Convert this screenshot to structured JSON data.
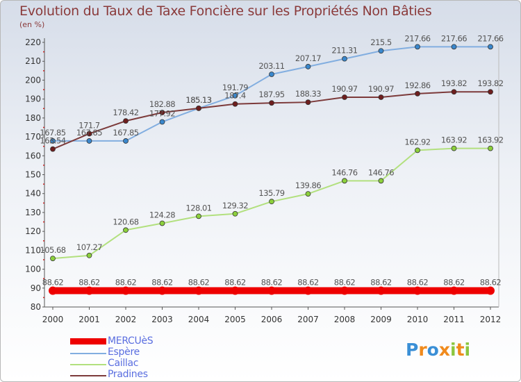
{
  "header": {
    "title": "Evolution du Taux de Taxe Foncière sur les Propriétés Non Bâties",
    "unit": "(en %)"
  },
  "logo": {
    "text": "Proxiti",
    "letter_colors": [
      "#3a8fd6",
      "#f08a1c",
      "#3a8fd6",
      "#f08a1c",
      "#8cc63f",
      "#f08a1c",
      "#8cc63f"
    ]
  },
  "chart_data": {
    "type": "line",
    "title": "Evolution du Taux de Taxe Foncière sur les Propriétés Non Bâties",
    "ylabel": "(en %)",
    "xlabel": "",
    "x": [
      "2000",
      "2001",
      "2002",
      "2003",
      "2004",
      "2005",
      "2006",
      "2007",
      "2008",
      "2009",
      "2010",
      "2011",
      "2012"
    ],
    "yticks": [
      80,
      90,
      100,
      110,
      120,
      130,
      140,
      150,
      160,
      170,
      180,
      190,
      200,
      210,
      220
    ],
    "ylim": [
      80,
      220
    ],
    "grid": false,
    "legend_position": "bottom-left",
    "series": [
      {
        "name": "MERCUèS",
        "color": "#ee0000",
        "marker_fill": "#ee0000",
        "style": "thick",
        "values": [
          88.62,
          88.62,
          88.62,
          88.62,
          88.62,
          88.62,
          88.62,
          88.62,
          88.62,
          88.62,
          88.62,
          88.62,
          88.62
        ],
        "labels": [
          "88.62",
          "88.62",
          "88.62",
          "88.62",
          "88.62",
          "88.62",
          "88.62",
          "88.62",
          "88.62",
          "88.62",
          "88.62",
          "88.62",
          "88.62"
        ]
      },
      {
        "name": "Espère",
        "color": "#82aee0",
        "marker_fill": "#3a87cc",
        "style": "thin",
        "values": [
          167.85,
          167.85,
          167.85,
          177.92,
          185.13,
          191.79,
          203.11,
          207.17,
          211.31,
          215.5,
          217.66,
          217.66,
          217.66
        ],
        "labels": [
          "167.85",
          "167.85",
          "167.85",
          "177.92",
          "185.13",
          "191.79",
          "203.11",
          "207.17",
          "211.31",
          "215.5",
          "217.66",
          "217.66",
          "217.66"
        ]
      },
      {
        "name": "Caillac",
        "color": "#b2e07e",
        "marker_fill": "#8cd03c",
        "style": "thin",
        "values": [
          105.68,
          107.27,
          120.68,
          124.28,
          128.01,
          129.32,
          135.79,
          139.86,
          146.76,
          146.76,
          162.92,
          163.92,
          163.92
        ],
        "labels": [
          "105.68",
          "107.27",
          "120.68",
          "124.28",
          "128.01",
          "129.32",
          "135.79",
          "139.86",
          "146.76",
          "146.76",
          "162.92",
          "163.92",
          "163.92"
        ]
      },
      {
        "name": "Pradines",
        "color": "#7c3a3a",
        "marker_fill": "#6e1e1e",
        "style": "thin",
        "values": [
          163.54,
          171.7,
          178.42,
          182.88,
          185.13,
          187.4,
          187.95,
          188.33,
          190.97,
          190.97,
          192.86,
          193.82,
          193.82
        ],
        "labels": [
          "163.54",
          "171.7",
          "178.42",
          "182.88",
          "185.13",
          "187.4",
          "187.95",
          "188.33",
          "190.97",
          "190.97",
          "192.86",
          "193.82",
          "193.82"
        ]
      }
    ]
  }
}
